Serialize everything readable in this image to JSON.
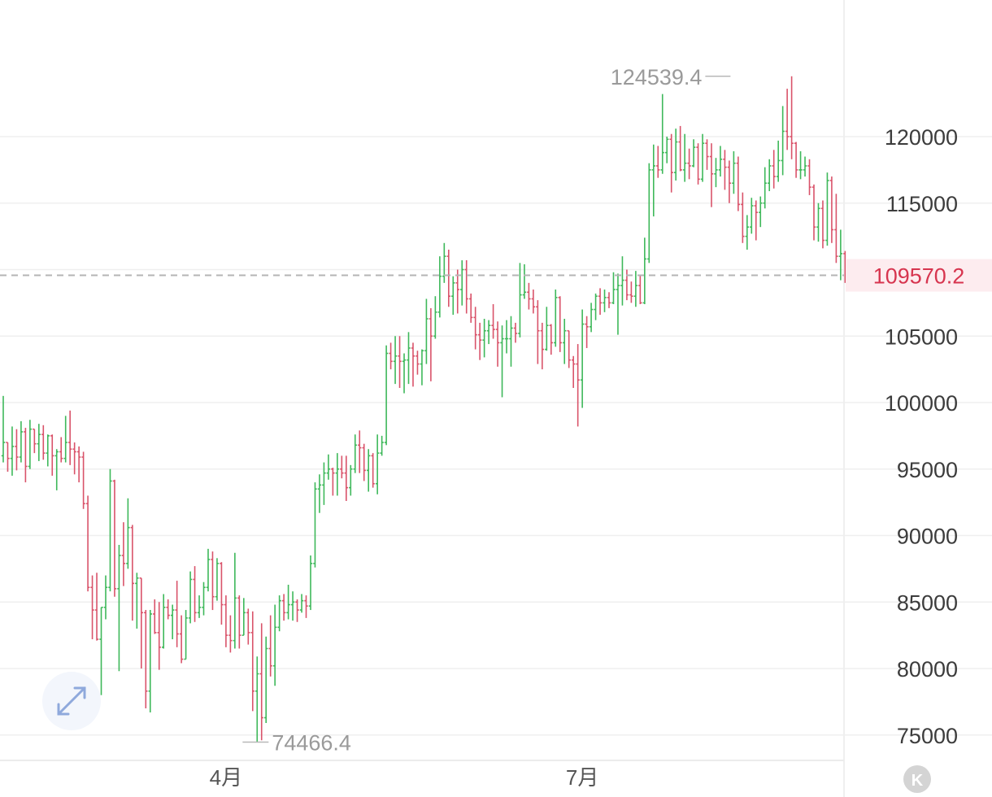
{
  "colors": {
    "up": "#3eb85a",
    "down": "#d9536a",
    "grid": "#efefef",
    "current_line": "#b5b5b5",
    "current_bg": "#fdecef",
    "current_text": "#d7354f"
  },
  "icons": {
    "expand": "expand-arrows-icon",
    "kline": "k-badge-icon"
  },
  "chart_data": {
    "type": "ohlc",
    "y_ticks": [
      {
        "value": 120000,
        "label": "120000"
      },
      {
        "value": 115000,
        "label": "115000"
      },
      {
        "value": 105000,
        "label": "105000"
      },
      {
        "value": 100000,
        "label": "100000"
      },
      {
        "value": 95000,
        "label": "95000"
      },
      {
        "value": 90000,
        "label": "90000"
      },
      {
        "value": 85000,
        "label": "85000"
      },
      {
        "value": 80000,
        "label": "80000"
      },
      {
        "value": 75000,
        "label": "75000"
      }
    ],
    "ylim": [
      73800,
      128500
    ],
    "x_ticks": [
      {
        "index": 50,
        "label": "4月"
      },
      {
        "index": 130,
        "label": "7月"
      }
    ],
    "current_price": {
      "value": 109570.2,
      "label": "109570.2"
    },
    "high_annotation": {
      "index": 164,
      "value": 124539.4,
      "label": "124539.4"
    },
    "low_annotation": {
      "index": 53,
      "value": 74466.4,
      "label": "74466.4"
    },
    "badge_label": "K",
    "candles": [
      [
        96000,
        100500,
        95500,
        97000
      ],
      [
        97000,
        97000,
        94800,
        95800
      ],
      [
        95800,
        98200,
        94500,
        96700
      ],
      [
        96700,
        98000,
        94900,
        95900
      ],
      [
        95900,
        98600,
        95500,
        97800
      ],
      [
        97800,
        98100,
        94000,
        95200
      ],
      [
        95200,
        98700,
        95000,
        98000
      ],
      [
        98000,
        98000,
        96200,
        96900
      ],
      [
        96900,
        98400,
        95600,
        97600
      ],
      [
        97600,
        98300,
        95700,
        96200
      ],
      [
        96200,
        97600,
        95200,
        97500
      ],
      [
        97500,
        97600,
        94500,
        96000
      ],
      [
        96000,
        96500,
        93400,
        96300
      ],
      [
        96300,
        97400,
        95500,
        95800
      ],
      [
        95800,
        99000,
        95500,
        97000
      ],
      [
        97000,
        99400,
        95300,
        96500
      ],
      [
        96500,
        97000,
        94600,
        96300
      ],
      [
        96300,
        96700,
        94000,
        95900
      ],
      [
        95900,
        96300,
        92000,
        92400
      ],
      [
        92400,
        93000,
        85800,
        86100
      ],
      [
        86100,
        87000,
        82200,
        84400
      ],
      [
        84400,
        87200,
        82100,
        82200
      ],
      [
        82200,
        84600,
        78000,
        84600
      ],
      [
        84600,
        87000,
        83700,
        86100
      ],
      [
        86100,
        95000,
        85800,
        94100
      ],
      [
        94100,
        94200,
        85400,
        86000
      ],
      [
        86000,
        89300,
        79800,
        88500
      ],
      [
        88500,
        91000,
        86200,
        87900
      ],
      [
        87900,
        92800,
        87500,
        90600
      ],
      [
        90600,
        90800,
        83600,
        86400
      ],
      [
        86400,
        87200,
        83000,
        86800
      ],
      [
        86800,
        86800,
        80000,
        84200
      ],
      [
        84200,
        84400,
        77000,
        78300
      ],
      [
        78300,
        84400,
        76700,
        84100
      ],
      [
        84100,
        85200,
        82600,
        82700
      ],
      [
        82700,
        85000,
        79900,
        81600
      ],
      [
        81600,
        85600,
        81500,
        84600
      ],
      [
        84600,
        85200,
        83700,
        84000
      ],
      [
        84000,
        84800,
        82200,
        84400
      ],
      [
        84400,
        86600,
        81600,
        82600
      ],
      [
        82600,
        84000,
        80400,
        80700
      ],
      [
        80700,
        84400,
        80700,
        83800
      ],
      [
        83800,
        87300,
        83400,
        86700
      ],
      [
        86700,
        87700,
        83500,
        84200
      ],
      [
        84200,
        85500,
        83800,
        84600
      ],
      [
        84600,
        86500,
        84000,
        86100
      ],
      [
        86100,
        89000,
        85800,
        88200
      ],
      [
        88200,
        88800,
        84400,
        85400
      ],
      [
        85400,
        88300,
        85100,
        87900
      ],
      [
        87900,
        88000,
        83300,
        84800
      ],
      [
        84800,
        85500,
        81600,
        82500
      ],
      [
        82500,
        84000,
        81200,
        82100
      ],
      [
        82100,
        88700,
        81500,
        85300
      ],
      [
        85300,
        85500,
        81500,
        82500
      ],
      [
        82500,
        85300,
        82500,
        84200
      ],
      [
        84200,
        84500,
        81800,
        82700
      ],
      [
        82700,
        84300,
        76800,
        78300
      ],
      [
        78300,
        80900,
        74466.4,
        79600
      ],
      [
        79600,
        83400,
        74600,
        76300
      ],
      [
        76300,
        82400,
        75900,
        81500
      ],
      [
        81500,
        84000,
        79400,
        80200
      ],
      [
        80200,
        84800,
        78700,
        83100
      ],
      [
        83100,
        85500,
        82800,
        85100
      ],
      [
        85100,
        85600,
        83600,
        84200
      ],
      [
        84200,
        86300,
        83700,
        84800
      ],
      [
        84800,
        85800,
        83600,
        85000
      ],
      [
        85000,
        85200,
        83500,
        84400
      ],
      [
        84400,
        85600,
        84200,
        85100
      ],
      [
        85100,
        85500,
        83800,
        84700
      ],
      [
        84700,
        88500,
        84400,
        87900
      ],
      [
        87900,
        94000,
        87600,
        93500
      ],
      [
        93500,
        94600,
        91700,
        93800
      ],
      [
        93800,
        95500,
        92300,
        94700
      ],
      [
        94700,
        96100,
        94200,
        95000
      ],
      [
        95000,
        95100,
        93000,
        94700
      ],
      [
        94700,
        96200,
        93000,
        95000
      ],
      [
        95000,
        96000,
        94300,
        94700
      ],
      [
        94700,
        96000,
        92600,
        93600
      ],
      [
        93600,
        95300,
        93000,
        95000
      ],
      [
        95000,
        97600,
        94700,
        96800
      ],
      [
        96800,
        97900,
        94700,
        96600
      ],
      [
        96600,
        96900,
        94100,
        94900
      ],
      [
        94900,
        96500,
        93300,
        96000
      ],
      [
        96000,
        96200,
        93600,
        93900
      ],
      [
        93900,
        97600,
        93100,
        96200
      ],
      [
        96200,
        97500,
        96000,
        97000
      ],
      [
        97000,
        104300,
        96800,
        103700
      ],
      [
        103700,
        104500,
        102500,
        103100
      ],
      [
        103100,
        105000,
        101400,
        103500
      ],
      [
        103500,
        105000,
        101100,
        103100
      ],
      [
        103100,
        103700,
        100700,
        103200
      ],
      [
        103200,
        105300,
        101400,
        104100
      ],
      [
        104100,
        104500,
        101200,
        103500
      ],
      [
        103500,
        103900,
        102100,
        102900
      ],
      [
        102900,
        104000,
        101300,
        103900
      ],
      [
        103900,
        107800,
        102900,
        106300
      ],
      [
        106300,
        107100,
        101600,
        105000
      ],
      [
        105000,
        108000,
        104800,
        106800
      ],
      [
        106800,
        111000,
        106400,
        109500
      ],
      [
        109500,
        112000,
        109000,
        111000
      ],
      [
        111000,
        111500,
        107200,
        108000
      ],
      [
        108000,
        109500,
        106600,
        109000
      ],
      [
        109000,
        110000,
        106700,
        108500
      ],
      [
        108500,
        110700,
        107300,
        110000
      ],
      [
        110000,
        110700,
        106700,
        107800
      ],
      [
        107800,
        108200,
        106000,
        106400
      ],
      [
        106400,
        107200,
        104000,
        105100
      ],
      [
        105100,
        106000,
        103200,
        104700
      ],
      [
        104700,
        106300,
        103400,
        105400
      ],
      [
        105400,
        106200,
        104400,
        105800
      ],
      [
        105800,
        107400,
        104800,
        105500
      ],
      [
        105500,
        106100,
        102700,
        104500
      ],
      [
        104500,
        105800,
        100400,
        104800
      ],
      [
        104800,
        106200,
        103700,
        104800
      ],
      [
        104800,
        106500,
        102700,
        105600
      ],
      [
        105600,
        106000,
        104500,
        105200
      ],
      [
        105200,
        110500,
        104900,
        108100
      ],
      [
        108100,
        110400,
        107800,
        108300
      ],
      [
        108300,
        109000,
        107000,
        107800
      ],
      [
        107800,
        108500,
        106700,
        107200
      ],
      [
        107200,
        107700,
        102900,
        105400
      ],
      [
        105400,
        106000,
        102500,
        104000
      ],
      [
        104000,
        107200,
        103900,
        105800
      ],
      [
        105800,
        105900,
        103600,
        104500
      ],
      [
        104500,
        108500,
        104200,
        107900
      ],
      [
        107900,
        108000,
        103800,
        104500
      ],
      [
        104500,
        106300,
        102900,
        105400
      ],
      [
        105400,
        105400,
        102600,
        103200
      ],
      [
        103200,
        103500,
        101100,
        102900
      ],
      [
        102900,
        104400,
        98200,
        101700
      ],
      [
        101700,
        107000,
        99600,
        105900
      ],
      [
        105900,
        106500,
        104100,
        105700
      ],
      [
        105700,
        107500,
        105300,
        107000
      ],
      [
        107000,
        108200,
        106200,
        108000
      ],
      [
        108000,
        108600,
        106600,
        107500
      ],
      [
        107500,
        108500,
        106800,
        107900
      ],
      [
        107900,
        108300,
        107100,
        107500
      ],
      [
        107500,
        109800,
        107400,
        108500
      ],
      [
        108500,
        109700,
        105100,
        108800
      ],
      [
        108800,
        111000,
        107300,
        109200
      ],
      [
        109200,
        110000,
        107700,
        108100
      ],
      [
        108100,
        109100,
        107500,
        108000
      ],
      [
        108000,
        109900,
        107200,
        108800
      ],
      [
        108800,
        109600,
        107400,
        107500
      ],
      [
        107500,
        112400,
        107400,
        110800
      ],
      [
        110800,
        118000,
        110500,
        117500
      ],
      [
        117500,
        119400,
        114000,
        117800
      ],
      [
        117800,
        119300,
        116900,
        117500
      ],
      [
        117500,
        123200,
        117200,
        118800
      ],
      [
        118800,
        120000,
        118000,
        119800
      ],
      [
        119800,
        120200,
        115800,
        117300
      ],
      [
        117300,
        120600,
        116700,
        119600
      ],
      [
        119600,
        120800,
        117400,
        117500
      ],
      [
        117500,
        120200,
        116600,
        118000
      ],
      [
        118000,
        119100,
        116800,
        117800
      ],
      [
        117800,
        119800,
        117700,
        119200
      ],
      [
        119200,
        119500,
        116400,
        116800
      ],
      [
        116800,
        120200,
        116600,
        119500
      ],
      [
        119500,
        119800,
        117500,
        118500
      ],
      [
        118500,
        119500,
        114700,
        117200
      ],
      [
        117200,
        118400,
        116200,
        117500
      ],
      [
        117500,
        119300,
        117000,
        118300
      ],
      [
        118300,
        119000,
        116000,
        117700
      ],
      [
        117700,
        118200,
        115000,
        116500
      ],
      [
        116500,
        118900,
        115700,
        118000
      ],
      [
        118000,
        118500,
        114400,
        114900
      ],
      [
        114900,
        115800,
        112000,
        112500
      ],
      [
        112500,
        114100,
        111500,
        113200
      ],
      [
        113200,
        115400,
        112700,
        114800
      ],
      [
        114800,
        115200,
        112200,
        114300
      ],
      [
        114300,
        115500,
        113200,
        115000
      ],
      [
        115000,
        117700,
        114600,
        116500
      ],
      [
        116500,
        118300,
        115900,
        117800
      ],
      [
        117800,
        119000,
        116100,
        117000
      ],
      [
        117000,
        119700,
        116600,
        118200
      ],
      [
        118200,
        122300,
        117100,
        120400
      ],
      [
        120400,
        123600,
        119000,
        120000
      ],
      [
        120000,
        124539.4,
        118300,
        119500
      ],
      [
        119500,
        119600,
        116900,
        117500
      ],
      [
        117500,
        118900,
        116800,
        117500
      ],
      [
        117500,
        118500,
        117000,
        117800
      ],
      [
        117800,
        118300,
        115600,
        116200
      ],
      [
        116200,
        116400,
        112200,
        113200
      ],
      [
        113200,
        115000,
        112100,
        114600
      ],
      [
        114600,
        115200,
        111600,
        112200
      ],
      [
        112200,
        117300,
        111800,
        116700
      ],
      [
        116700,
        117000,
        112000,
        113000
      ],
      [
        113000,
        115700,
        110500,
        111000
      ],
      [
        111000,
        113000,
        109200,
        111200
      ],
      [
        111200,
        111400,
        109000,
        109570.2
      ]
    ]
  }
}
